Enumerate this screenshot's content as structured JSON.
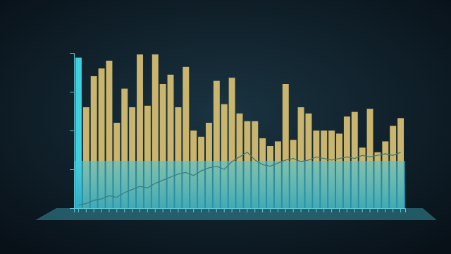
{
  "chart_data": {
    "type": "bar",
    "categories": [
      null,
      null,
      null,
      null,
      null,
      null,
      null,
      null,
      null,
      null,
      null,
      null,
      null,
      null,
      null,
      null,
      null,
      null,
      null,
      null,
      null,
      null,
      null,
      null,
      null,
      null,
      null,
      null,
      null,
      null,
      null,
      null,
      null,
      null,
      null,
      null,
      null,
      null,
      null,
      null,
      null,
      null,
      null
    ],
    "series": [
      {
        "type": "bar",
        "colors": [
          "#3fd0e0",
          "#c9b56e",
          "#c9b56e",
          "#c9b56e",
          "#c9b56e",
          "#c9b56e",
          "#c9b56e",
          "#c9b56e",
          "#c9b56e",
          "#c9b56e",
          "#c9b56e",
          "#c9b56e",
          "#c9b56e",
          "#c9b56e",
          "#c9b56e",
          "#c9b56e",
          "#c9b56e",
          "#c9b56e",
          "#c9b56e",
          "#c9b56e",
          "#c9b56e",
          "#c9b56e",
          "#c9b56e",
          "#c9b56e",
          "#c9b56e",
          "#c9b56e",
          "#c9b56e",
          "#c9b56e",
          "#c9b56e",
          "#c9b56e",
          "#c9b56e",
          "#c9b56e",
          "#c9b56e",
          "#c9b56e",
          "#c9b56e",
          "#c9b56e",
          "#c9b56e",
          "#c9b56e",
          "#c9b56e",
          "#c9b56e",
          "#c9b56e",
          "#c9b56e",
          "#c9b56e"
        ],
        "values": [
          97,
          65,
          85,
          90,
          95,
          55,
          77,
          65,
          99,
          66,
          99,
          80,
          86,
          65,
          91,
          50,
          46,
          55,
          82,
          67,
          84,
          61,
          56,
          56,
          45,
          40,
          43,
          80,
          44,
          65,
          61,
          50,
          50,
          50,
          48,
          59,
          62,
          39,
          64,
          36,
          43,
          53,
          58
        ]
      },
      {
        "type": "line",
        "color": "#3a7f7c",
        "values": [
          2,
          3,
          5,
          6,
          8,
          7,
          10,
          12,
          14,
          13,
          16,
          18,
          20,
          22,
          23,
          21,
          24,
          26,
          27,
          25,
          30,
          33,
          36,
          31,
          28,
          27,
          29,
          31,
          32,
          30,
          31,
          33,
          32,
          31,
          32,
          33,
          32,
          34,
          33,
          34,
          35,
          34,
          36
        ]
      }
    ],
    "ylim": [
      0,
      100
    ],
    "yticks": [
      0,
      25,
      50,
      75,
      100
    ],
    "grid": false,
    "tick_labels": false
  }
}
